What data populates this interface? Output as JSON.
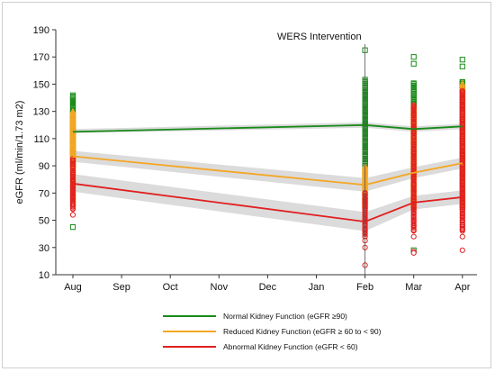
{
  "chart_data": {
    "type": "line",
    "title": "",
    "ylabel": "eGFR (ml/min/1.73 m2)",
    "xlabel": "",
    "categories": [
      "Aug",
      "Sep",
      "Oct",
      "Nov",
      "Dec",
      "Jan",
      "Feb",
      "Mar",
      "Apr"
    ],
    "ylim": [
      10,
      190
    ],
    "yticks": [
      10,
      30,
      50,
      70,
      90,
      110,
      130,
      150,
      170,
      190
    ],
    "grid": false,
    "legend_position": "bottom",
    "annotation": {
      "label": "WERS Intervention",
      "x": "Feb"
    },
    "series": [
      {
        "name": "Normal Kidney Function (eGFR ≥90)",
        "color": "#1a8a1a",
        "x": [
          "Aug",
          "Feb",
          "Mar",
          "Apr"
        ],
        "values": [
          115,
          120,
          117,
          119
        ],
        "ci_low": [
          114,
          118,
          115,
          117
        ],
        "ci_high": [
          117,
          122,
          119,
          121
        ],
        "points": {
          "Aug": {
            "min": 90,
            "max": 142,
            "outliers": [
              45
            ]
          },
          "Feb": {
            "min": 90,
            "max": 153,
            "outliers": [
              175
            ]
          },
          "Mar": {
            "min": 90,
            "max": 151,
            "outliers": [
              165,
              170,
              28
            ]
          },
          "Apr": {
            "min": 90,
            "max": 152,
            "outliers": [
              168,
              163
            ]
          }
        }
      },
      {
        "name": "Reduced Kidney Function (eGFR ≥ 60 to < 90)",
        "color": "#f5a623",
        "x": [
          "Aug",
          "Feb",
          "Mar",
          "Apr"
        ],
        "values": [
          97,
          76,
          85,
          92
        ],
        "ci_low": [
          93,
          71,
          81,
          88
        ],
        "ci_high": [
          101,
          81,
          89,
          96
        ],
        "points": {
          "Aug": {
            "min": 62,
            "max": 130,
            "outliers": []
          },
          "Feb": {
            "min": 60,
            "max": 90,
            "outliers": []
          },
          "Mar": {
            "min": 60,
            "max": 135,
            "outliers": []
          },
          "Apr": {
            "min": 60,
            "max": 150,
            "outliers": []
          }
        }
      },
      {
        "name": "Abnormal Kidney Function (eGFR < 60)",
        "color": "#e02020",
        "x": [
          "Aug",
          "Feb",
          "Mar",
          "Apr"
        ],
        "values": [
          77,
          49,
          63,
          67
        ],
        "ci_low": [
          71,
          42,
          58,
          62
        ],
        "ci_high": [
          84,
          56,
          68,
          72
        ],
        "points": {
          "Aug": {
            "min": 58,
            "max": 95,
            "outliers": [
              54
            ]
          },
          "Feb": {
            "min": 38,
            "max": 70,
            "outliers": [
              30,
              17,
              35
            ]
          },
          "Mar": {
            "min": 42,
            "max": 135,
            "outliers": [
              27,
              26,
              38
            ]
          },
          "Apr": {
            "min": 42,
            "max": 145,
            "outliers": [
              28,
              38
            ]
          }
        }
      }
    ]
  }
}
